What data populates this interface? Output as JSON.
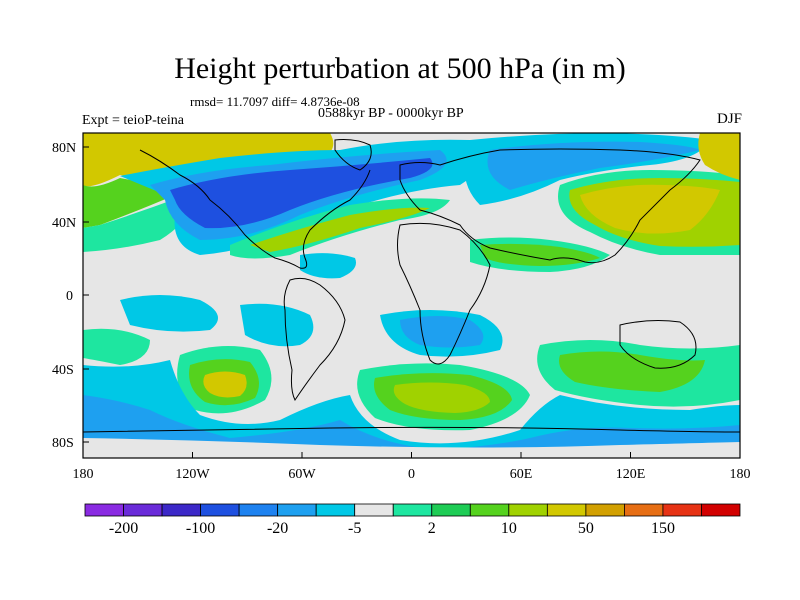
{
  "title": "Height perturbation at 500 hPa (in m)",
  "stats": "rmsd= 11.7097 diff= 4.8736e-08",
  "period": "0588kyr BP - 0000kyr BP",
  "experiment": "Expt = teioP-teina",
  "season": "DJF",
  "map": {
    "projection": "cylindrical equidistant",
    "lon_range": [
      -180,
      180
    ],
    "lat_range": [
      -90,
      90
    ],
    "lon_tick_labels": [
      "180",
      "120W",
      "60W",
      "0",
      "60E",
      "120E",
      "180"
    ],
    "lat_tick_labels": [
      "80N",
      "40N",
      "0",
      "40S",
      "80S"
    ]
  },
  "colorbar": {
    "labels": [
      "-200",
      "-100",
      "-20",
      "-5",
      "2",
      "10",
      "50",
      "150"
    ],
    "colors": [
      "#8a2be2",
      "#6a2bd9",
      "#3c28c8",
      "#1e50e0",
      "#1e82f0",
      "#1ea0f0",
      "#00c8e6",
      "#e6e6e6",
      "#1ee6a0",
      "#1ecc55",
      "#55d21e",
      "#a0d200",
      "#d2c800",
      "#d2a000",
      "#e66e14",
      "#e63214",
      "#d20000"
    ]
  },
  "palette": {
    "strong_neg": "#1e50e0",
    "mid_neg": "#1ea0f0",
    "weak_neg": "#00c8e6",
    "neutral": "#e6e6e6",
    "weak_pos": "#1ee6a0",
    "mid_pos": "#55d21e",
    "strong_pos": "#d2c800"
  }
}
